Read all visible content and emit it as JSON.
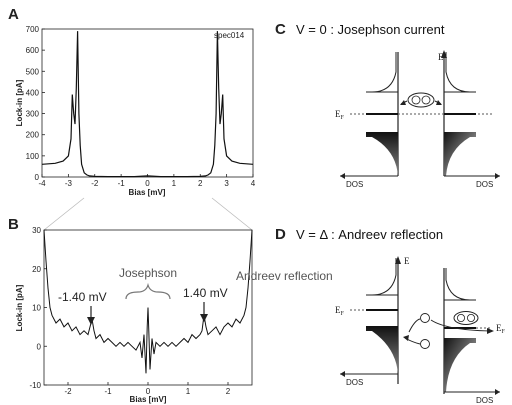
{
  "chart_data": [
    {
      "panel": "A",
      "type": "line",
      "annotation": "spec014",
      "xlabel": "Bias [mV]",
      "ylabel": "Lock-in [pA]",
      "xlim": [
        -4,
        4
      ],
      "ylim": [
        0,
        700
      ],
      "xticks": [
        "-4",
        "-3",
        "-2",
        "-1",
        "0",
        "1",
        "2",
        "3",
        "4"
      ],
      "yticks": [
        "0",
        "100",
        "200",
        "300",
        "400",
        "500",
        "600",
        "700"
      ],
      "series": [
        {
          "x": [
            -4.0,
            -3.5,
            -3.2,
            -3.0,
            -2.9,
            -2.85,
            -2.8,
            -2.75,
            -2.7,
            -2.65,
            -2.6,
            -2.55,
            -2.5,
            -2.4,
            -2.3,
            -2.2,
            -2.0,
            -1.5,
            -1.0,
            -0.5,
            0.0,
            0.5,
            1.0,
            1.5,
            2.0,
            2.2,
            2.3,
            2.4,
            2.5,
            2.55,
            2.6,
            2.65,
            2.7,
            2.75,
            2.8,
            2.85,
            2.9,
            3.0,
            3.2,
            3.5,
            4.0
          ],
          "y": [
            60,
            65,
            75,
            100,
            180,
            390,
            300,
            250,
            420,
            690,
            300,
            150,
            60,
            20,
            10,
            5,
            3,
            2,
            2,
            2,
            5,
            2,
            2,
            2,
            3,
            5,
            10,
            20,
            60,
            150,
            300,
            690,
            420,
            250,
            300,
            390,
            180,
            100,
            75,
            65,
            60
          ]
        }
      ]
    },
    {
      "panel": "B",
      "type": "line",
      "xlabel": "Bias [mV]",
      "ylabel": "Lock-in [pA]",
      "xlim": [
        -2.6,
        2.6
      ],
      "ylim": [
        -10,
        30
      ],
      "xticks": [
        "-2",
        "-1",
        "0",
        "1",
        "2"
      ],
      "yticks": [
        "-10",
        "0",
        "10",
        "20",
        "30"
      ],
      "annotations": [
        "Josephson",
        "-1.40 mV",
        "1.40 mV",
        "Andreev reflection"
      ],
      "series": [
        {
          "x": [
            -2.6,
            -2.55,
            -2.5,
            -2.45,
            -2.4,
            -2.3,
            -2.2,
            -2.1,
            -2.0,
            -1.9,
            -1.8,
            -1.7,
            -1.6,
            -1.5,
            -1.45,
            -1.4,
            -1.35,
            -1.3,
            -1.2,
            -1.1,
            -1.0,
            -0.9,
            -0.8,
            -0.7,
            -0.6,
            -0.5,
            -0.4,
            -0.3,
            -0.2,
            -0.15,
            -0.1,
            -0.05,
            -0.02,
            0.0,
            0.02,
            0.05,
            0.1,
            0.15,
            0.2,
            0.3,
            0.4,
            0.5,
            0.6,
            0.7,
            0.8,
            0.9,
            1.0,
            1.1,
            1.2,
            1.3,
            1.35,
            1.4,
            1.45,
            1.5,
            1.6,
            1.7,
            1.8,
            1.9,
            2.0,
            2.1,
            2.2,
            2.3,
            2.4,
            2.45,
            2.5,
            2.55,
            2.6
          ],
          "y": [
            30,
            22,
            15,
            10,
            8,
            6,
            7,
            5,
            6,
            4,
            5,
            3,
            4,
            3,
            5,
            7,
            4,
            2,
            3,
            1,
            2,
            1,
            0,
            1,
            0,
            1,
            0,
            -1,
            1,
            -3,
            3,
            -7,
            5,
            10,
            4,
            -6,
            2,
            -2,
            1,
            0,
            1,
            0,
            1,
            0,
            1,
            2,
            1,
            3,
            2,
            3,
            4,
            8,
            5,
            3,
            4,
            5,
            3,
            5,
            6,
            5,
            7,
            6,
            8,
            10,
            15,
            22,
            30
          ]
        }
      ]
    }
  ],
  "panels": {
    "a": {
      "letter": "A"
    },
    "b": {
      "letter": "B"
    },
    "c": {
      "letter": "C",
      "title": "V = 0 : Josephson current"
    },
    "d": {
      "letter": "D",
      "title": "V = Δ : Andreev reflection"
    }
  },
  "diagram": {
    "c": {
      "energy_label": "E",
      "fermi_label": "E",
      "fermi_subscript": "F",
      "dos_left": "DOS",
      "dos_right": "DOS"
    },
    "d": {
      "energy_label": "E",
      "fermi_label": "E",
      "fermi_subscript": "F",
      "dos_left": "DOS",
      "dos_right": "DOS"
    }
  }
}
